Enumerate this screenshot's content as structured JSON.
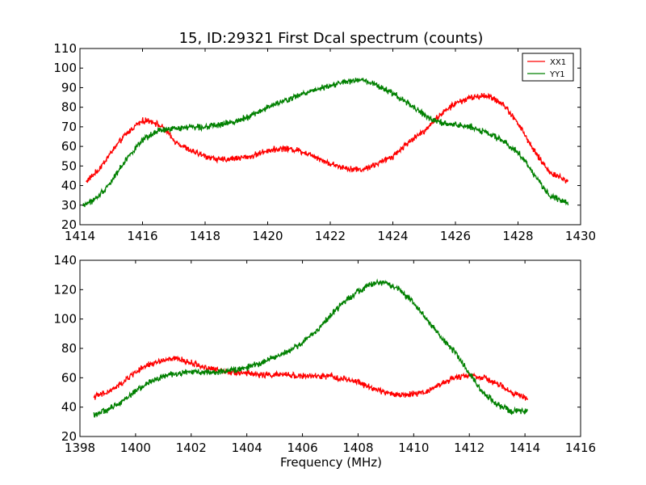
{
  "figure": {
    "title": "15, ID:29321 First Dcal spectrum (counts)",
    "xlabel": "Frequency (MHz)"
  },
  "chart_data": [
    {
      "type": "line",
      "title": "15, ID:29321 First Dcal spectrum (counts)",
      "xlabel": "",
      "ylabel": "",
      "xlim": [
        1414,
        1430
      ],
      "ylim": [
        20,
        110
      ],
      "xticks": [
        "1414",
        "1416",
        "1418",
        "1420",
        "1422",
        "1424",
        "1426",
        "1428",
        "1430"
      ],
      "yticks": [
        "20",
        "30",
        "40",
        "50",
        "60",
        "70",
        "80",
        "90",
        "100",
        "110"
      ],
      "grid": false,
      "legend": {
        "position": "top-right",
        "entries": [
          "XX1",
          "YY1"
        ]
      },
      "series": [
        {
          "name": "XX1",
          "color": "#ff0000",
          "x": [
            1414.2,
            1414.6,
            1415.0,
            1415.4,
            1415.8,
            1416.0,
            1416.3,
            1416.7,
            1417.0,
            1417.5,
            1418.0,
            1418.5,
            1419.0,
            1419.5,
            1420.0,
            1420.5,
            1421.0,
            1421.5,
            1422.0,
            1422.5,
            1423.0,
            1423.5,
            1424.0,
            1424.5,
            1425.0,
            1425.5,
            1426.0,
            1426.5,
            1427.0,
            1427.5,
            1428.0,
            1428.5,
            1429.0,
            1429.6
          ],
          "values": [
            42,
            48,
            57,
            65,
            71,
            73,
            73,
            69,
            63,
            58,
            55,
            53,
            54,
            55,
            58,
            59,
            58,
            55,
            51,
            49,
            48,
            51,
            55,
            62,
            68,
            76,
            82,
            85,
            86,
            82,
            72,
            58,
            47,
            42
          ]
        },
        {
          "name": "YY1",
          "color": "#008000",
          "x": [
            1414.1,
            1414.5,
            1415.0,
            1415.5,
            1416.0,
            1416.5,
            1417.0,
            1417.5,
            1418.0,
            1418.5,
            1419.0,
            1419.5,
            1420.0,
            1420.5,
            1421.0,
            1421.5,
            1422.0,
            1422.5,
            1423.0,
            1423.5,
            1424.0,
            1424.5,
            1425.0,
            1425.5,
            1426.0,
            1426.5,
            1427.0,
            1427.5,
            1428.0,
            1428.5,
            1429.0,
            1429.6
          ],
          "values": [
            30,
            33,
            42,
            54,
            63,
            68,
            69,
            70,
            70,
            71,
            73,
            76,
            80,
            83,
            86,
            89,
            91,
            93,
            94,
            91,
            87,
            82,
            76,
            72,
            71,
            70,
            67,
            63,
            57,
            46,
            35,
            31
          ]
        }
      ]
    },
    {
      "type": "line",
      "title": "",
      "xlabel": "Frequency (MHz)",
      "ylabel": "",
      "xlim": [
        1398,
        1416
      ],
      "ylim": [
        20,
        140
      ],
      "xticks": [
        "1398",
        "1400",
        "1402",
        "1404",
        "1406",
        "1408",
        "1410",
        "1412",
        "1414",
        "1416"
      ],
      "yticks": [
        "20",
        "40",
        "60",
        "80",
        "100",
        "120",
        "140"
      ],
      "grid": false,
      "legend": null,
      "series": [
        {
          "name": "XX1",
          "color": "#ff0000",
          "x": [
            1398.5,
            1399.0,
            1399.5,
            1400.0,
            1400.5,
            1401.0,
            1401.5,
            1402.0,
            1402.5,
            1403.0,
            1403.5,
            1404.0,
            1404.5,
            1405.0,
            1405.5,
            1406.0,
            1406.5,
            1407.0,
            1407.5,
            1408.0,
            1408.5,
            1409.0,
            1409.5,
            1410.0,
            1410.5,
            1411.0,
            1411.5,
            1412.0,
            1412.5,
            1413.0,
            1413.5,
            1414.1
          ],
          "values": [
            47,
            50,
            56,
            64,
            69,
            72,
            73,
            70,
            67,
            65,
            64,
            63,
            62,
            62,
            62,
            61,
            61,
            61,
            59,
            57,
            53,
            50,
            48,
            49,
            51,
            56,
            60,
            62,
            60,
            56,
            50,
            46
          ]
        },
        {
          "name": "YY1",
          "color": "#008000",
          "x": [
            1398.5,
            1399.0,
            1399.5,
            1400.0,
            1400.5,
            1401.0,
            1401.5,
            1402.0,
            1402.5,
            1403.0,
            1403.5,
            1404.0,
            1404.5,
            1405.0,
            1405.5,
            1406.0,
            1406.5,
            1407.0,
            1407.5,
            1408.0,
            1408.5,
            1409.0,
            1409.5,
            1410.0,
            1410.5,
            1411.0,
            1411.5,
            1412.0,
            1412.5,
            1413.0,
            1413.5,
            1414.1
          ],
          "values": [
            35,
            38,
            44,
            51,
            57,
            61,
            63,
            64,
            64,
            64,
            65,
            67,
            70,
            74,
            78,
            84,
            92,
            102,
            112,
            119,
            124,
            125,
            120,
            111,
            99,
            87,
            77,
            63,
            50,
            42,
            37,
            37
          ]
        }
      ]
    }
  ]
}
